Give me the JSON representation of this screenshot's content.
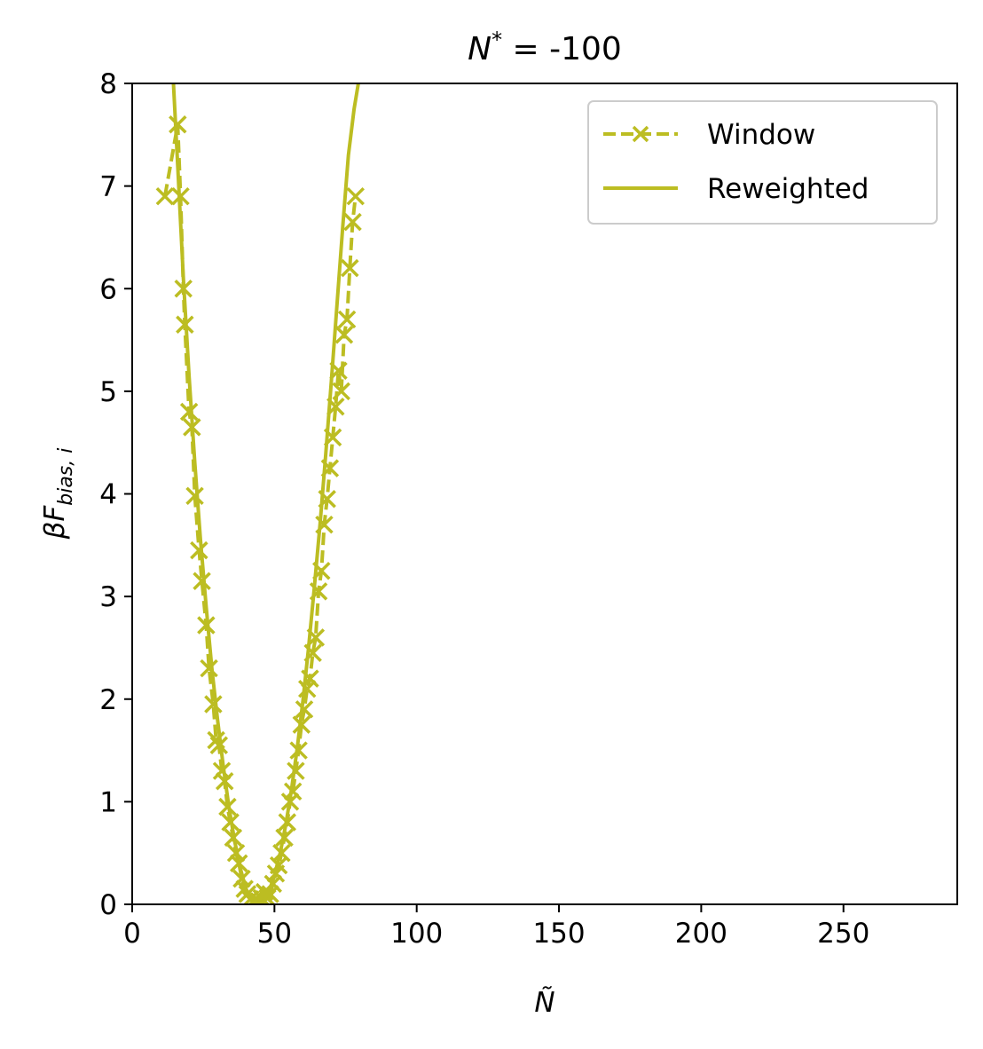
{
  "chart_data": {
    "type": "line",
    "title": {
      "prefix": "N",
      "sup": "*",
      "suffix": " = -100"
    },
    "xlabel": "Ñ",
    "ylabel": {
      "main": "βF",
      "sub": "bias, i"
    },
    "xlim": [
      0,
      290
    ],
    "ylim": [
      0,
      8
    ],
    "xticks": [
      0,
      50,
      100,
      150,
      200,
      250
    ],
    "yticks": [
      0,
      1,
      2,
      3,
      4,
      5,
      6,
      7,
      8
    ],
    "grid": false,
    "legend_position": "upper right",
    "color": "#bcbd22",
    "series": [
      {
        "name": "Window",
        "style": "dashed-with-x-markers",
        "x": [
          11.5,
          16,
          17,
          18,
          18.5,
          20,
          21,
          22,
          23.5,
          24.5,
          26,
          27,
          28.5,
          29.5,
          30.5,
          31.5,
          32.5,
          33.5,
          34.5,
          35.5,
          36.5,
          37.5,
          38.5,
          39.5,
          40.5,
          41.5,
          42.5,
          43.5,
          44.5,
          45.5,
          46.5,
          47.5,
          48.5,
          49.5,
          50.5,
          51.5,
          52.5,
          53.5,
          54.5,
          55.5,
          56.5,
          57.5,
          58.5,
          59.5,
          60.5,
          61.5,
          62.5,
          63.5,
          64.5,
          65.5,
          66.5,
          67.5,
          68.5,
          69.5,
          70.5,
          71.5,
          72.5,
          73.5,
          74.5,
          75.5,
          76.5,
          77.5,
          78.5
        ],
        "y": [
          6.9,
          7.6,
          6.9,
          6.0,
          5.65,
          4.8,
          4.65,
          3.98,
          3.45,
          3.15,
          2.72,
          2.3,
          1.95,
          1.6,
          1.55,
          1.3,
          1.2,
          0.95,
          0.8,
          0.65,
          0.5,
          0.4,
          0.25,
          0.15,
          0.1,
          0.05,
          0.03,
          0.0,
          0.03,
          0.06,
          0.12,
          0.06,
          0.1,
          0.2,
          0.3,
          0.38,
          0.5,
          0.65,
          0.8,
          1.0,
          1.1,
          1.3,
          1.5,
          1.75,
          1.9,
          2.1,
          2.2,
          2.45,
          2.6,
          3.05,
          3.25,
          3.7,
          3.95,
          4.25,
          4.55,
          4.85,
          5.2,
          5.0,
          5.55,
          5.7,
          6.2,
          6.65,
          6.9
        ]
      },
      {
        "name": "Reweighted",
        "style": "solid",
        "x": [
          14.5,
          16,
          18,
          20,
          22,
          24,
          26,
          28,
          30,
          32,
          34,
          36,
          38,
          40,
          42,
          44,
          46,
          48,
          50,
          52,
          54,
          56,
          58,
          60,
          62,
          64,
          66,
          68,
          70,
          72,
          74,
          76,
          78,
          79.5
        ],
        "y": [
          8.0,
          7.2,
          6.1,
          5.15,
          4.3,
          3.55,
          2.9,
          2.3,
          1.8,
          1.35,
          0.95,
          0.62,
          0.35,
          0.15,
          0.04,
          0.0,
          0.03,
          0.12,
          0.28,
          0.5,
          0.78,
          1.12,
          1.52,
          1.98,
          2.5,
          3.08,
          3.7,
          4.38,
          5.1,
          5.85,
          6.6,
          7.3,
          7.75,
          8.0
        ]
      }
    ]
  }
}
